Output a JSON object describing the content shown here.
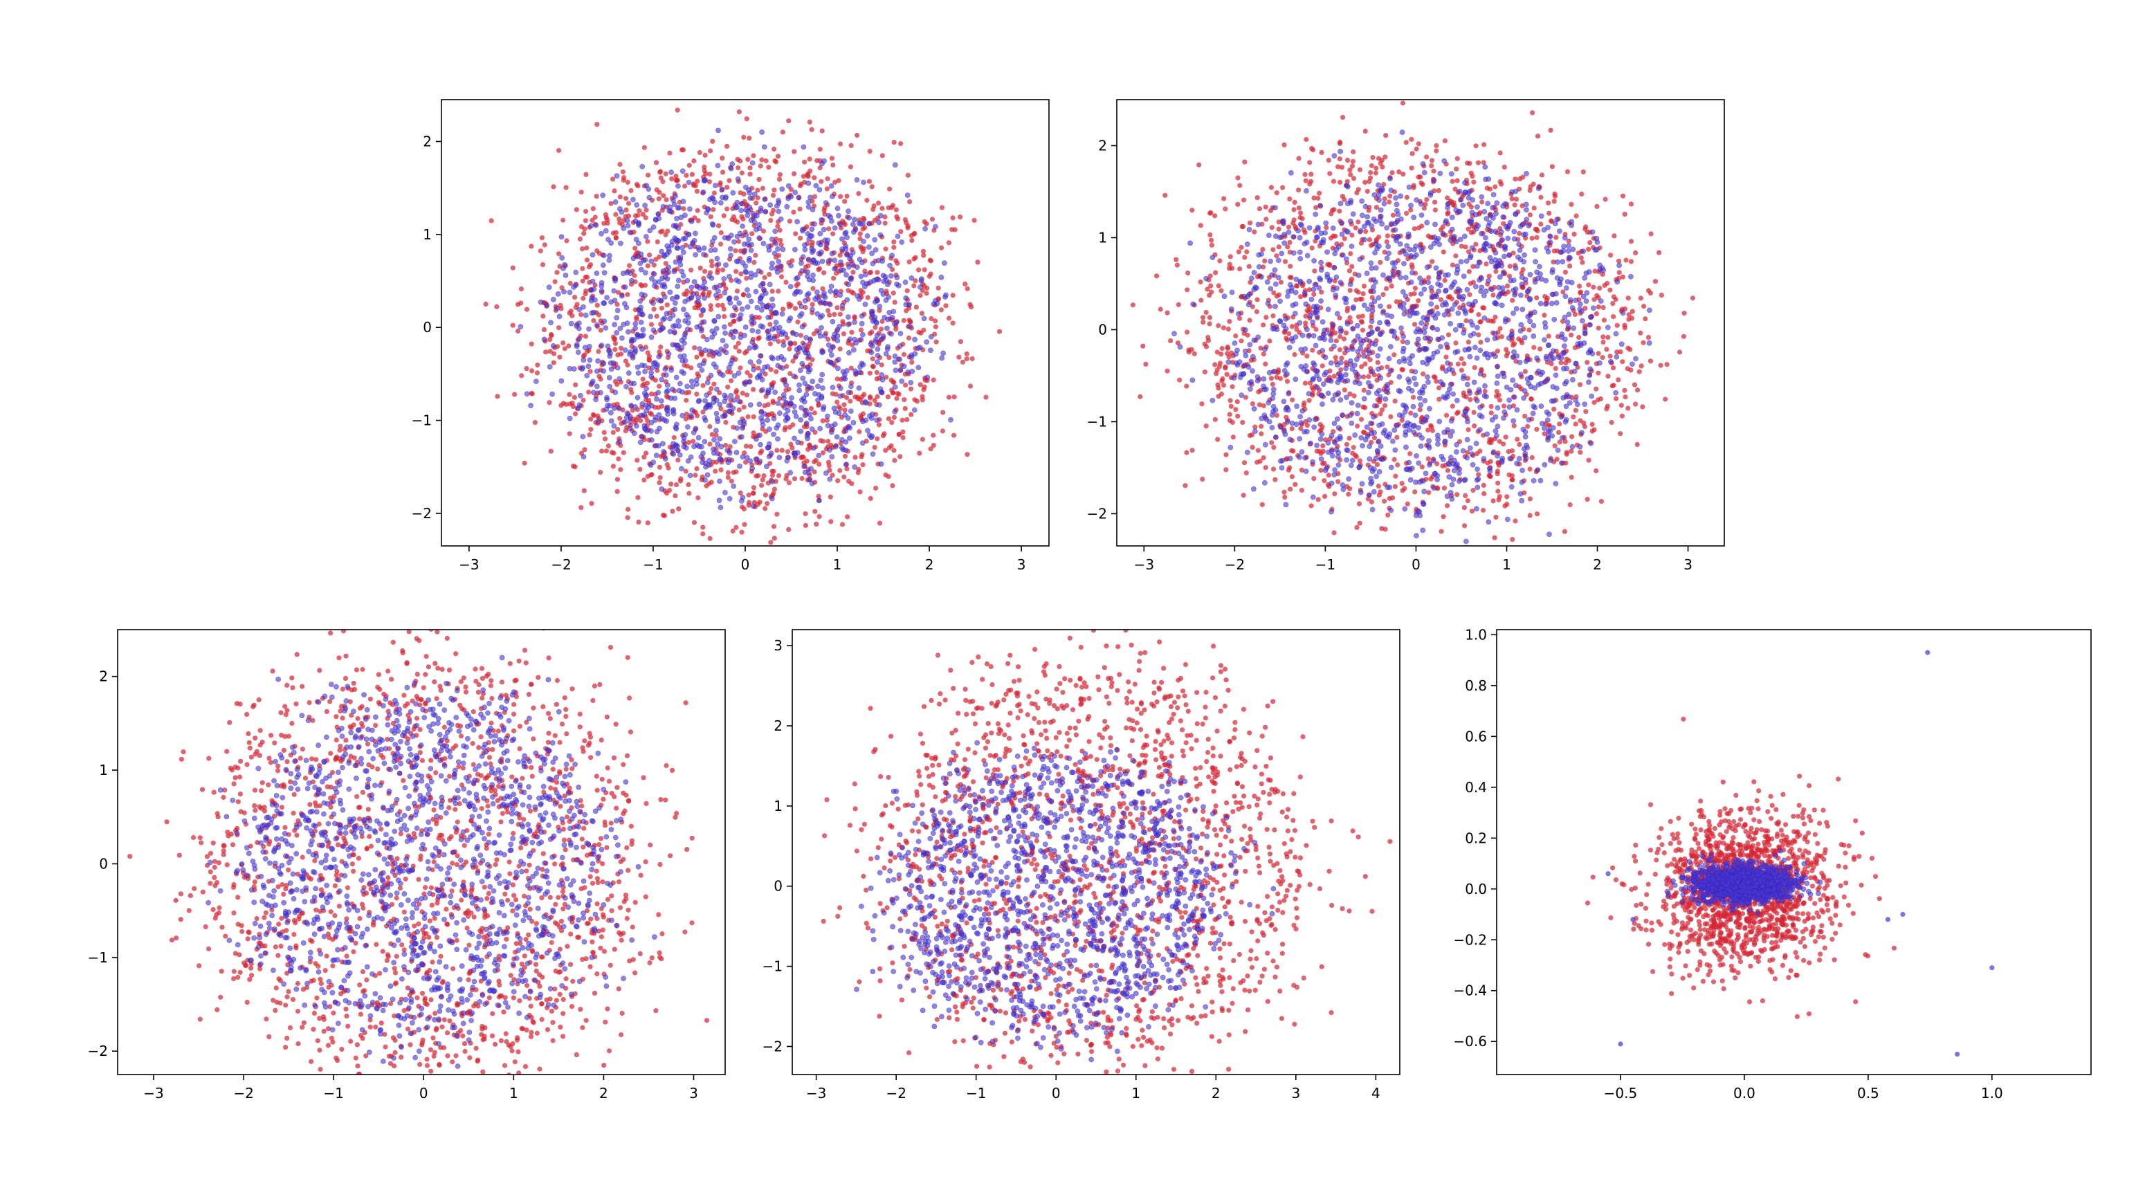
{
  "figure": {
    "layout": "two rows: 2 panels on top, 3 panels on bottom",
    "colors": {
      "series_a": "#d62734",
      "series_b": "#4a35d6",
      "axis": "#000000",
      "background": "#ffffff"
    }
  },
  "chart_data": [
    {
      "type": "scatter",
      "xlim": [
        -3.3,
        3.3
      ],
      "ylim": [
        -2.35,
        2.45
      ],
      "xticks": [
        -3,
        -2,
        -1,
        0,
        1,
        2,
        3
      ],
      "yticks": [
        -2,
        -1,
        0,
        1,
        2
      ],
      "xtick_labels": [
        "−3",
        "−2",
        "−1",
        "0",
        "1",
        "2",
        "3"
      ],
      "ytick_labels": [
        "−2",
        "−1",
        "0",
        "1",
        "2"
      ],
      "series": [
        {
          "color": "#d62734",
          "count": 1500,
          "center": [
            0.0,
            0.0
          ],
          "spread": [
            0.95,
            0.8
          ],
          "shape": "disc",
          "radius": 2.2
        },
        {
          "color": "#4a35d6",
          "count": 1300,
          "center": [
            0.0,
            0.0
          ],
          "spread": [
            0.85,
            0.7
          ],
          "shape": "disc",
          "radius": 1.85
        }
      ],
      "grid": false
    },
    {
      "type": "scatter",
      "xlim": [
        -3.3,
        3.4
      ],
      "ylim": [
        -2.35,
        2.5
      ],
      "xticks": [
        -3,
        -2,
        -1,
        0,
        1,
        2,
        3
      ],
      "yticks": [
        -2,
        -1,
        0,
        1,
        2
      ],
      "xtick_labels": [
        "−3",
        "−2",
        "−1",
        "0",
        "1",
        "2",
        "3"
      ],
      "ytick_labels": [
        "−2",
        "−1",
        "0",
        "1",
        "2"
      ],
      "series": [
        {
          "color": "#d62734",
          "count": 1500,
          "center": [
            0.0,
            0.0
          ],
          "spread": [
            1.0,
            0.8
          ],
          "shape": "disc",
          "radius": 2.4
        },
        {
          "color": "#4a35d6",
          "count": 1300,
          "center": [
            0.0,
            -0.1
          ],
          "spread": [
            0.9,
            0.75
          ],
          "shape": "disc",
          "radius": 2.0
        }
      ],
      "grid": false
    },
    {
      "type": "scatter",
      "xlim": [
        -3.4,
        3.35
      ],
      "ylim": [
        -2.25,
        2.5
      ],
      "xticks": [
        -3,
        -2,
        -1,
        0,
        1,
        2,
        3
      ],
      "yticks": [
        -2,
        -1,
        0,
        1,
        2
      ],
      "xtick_labels": [
        "−3",
        "−2",
        "−1",
        "0",
        "1",
        "2",
        "3"
      ],
      "ytick_labels": [
        "−2",
        "−1",
        "0",
        "1",
        "2"
      ],
      "series": [
        {
          "color": "#d62734",
          "count": 1500,
          "center": [
            0.0,
            0.0
          ],
          "spread": [
            1.05,
            0.95
          ],
          "shape": "disc",
          "radius": 2.4
        },
        {
          "color": "#4a35d6",
          "count": 1300,
          "center": [
            0.0,
            0.0
          ],
          "spread": [
            0.85,
            0.75
          ],
          "shape": "disc",
          "radius": 1.9
        }
      ],
      "grid": false
    },
    {
      "type": "scatter",
      "xlim": [
        -3.3,
        4.3
      ],
      "ylim": [
        -2.35,
        3.2
      ],
      "xticks": [
        -3,
        -2,
        -1,
        0,
        1,
        2,
        3,
        4
      ],
      "yticks": [
        -2,
        -1,
        0,
        1,
        2,
        3
      ],
      "xtick_labels": [
        "−3",
        "−2",
        "−1",
        "0",
        "1",
        "2",
        "3",
        "4"
      ],
      "ytick_labels": [
        "−2",
        "−1",
        "0",
        "1",
        "2",
        "3"
      ],
      "series": [
        {
          "color": "#d62734",
          "count": 1500,
          "center": [
            0.5,
            0.3
          ],
          "spread": [
            1.1,
            1.0
          ],
          "shape": "disc",
          "radius": 2.6
        },
        {
          "color": "#4a35d6",
          "count": 1300,
          "center": [
            0.0,
            -0.1
          ],
          "spread": [
            0.9,
            0.75
          ],
          "shape": "disc",
          "radius": 1.95
        }
      ],
      "grid": false
    },
    {
      "type": "scatter",
      "xlim": [
        -1.0,
        1.4
      ],
      "ylim": [
        -0.73,
        1.02
      ],
      "xticks": [
        -0.5,
        0.0,
        0.5,
        1.0
      ],
      "yticks": [
        -0.6,
        -0.4,
        -0.2,
        0.0,
        0.2,
        0.4,
        0.6,
        0.8,
        1.0
      ],
      "xtick_labels": [
        "−0.5",
        "0.0",
        "0.5",
        "1.0"
      ],
      "ytick_labels": [
        "−0.6",
        "−0.4",
        "−0.2",
        "0.0",
        "0.2",
        "0.4",
        "0.6",
        "0.8",
        "1.0"
      ],
      "series": [
        {
          "color": "#d62734",
          "count": 1400,
          "center": [
            0.0,
            0.0
          ],
          "spread": [
            0.18,
            0.15
          ],
          "shape": "gauss"
        },
        {
          "color": "#4a35d6",
          "count": 1300,
          "center": [
            0.0,
            0.02
          ],
          "spread": [
            0.1,
            0.035
          ],
          "shape": "gauss"
        }
      ],
      "outliers": [
        {
          "x": 0.74,
          "y": 0.93
        },
        {
          "x": 1.0,
          "y": -0.31
        },
        {
          "x": 0.86,
          "y": -0.65
        },
        {
          "x": -0.5,
          "y": -0.61
        },
        {
          "x": 0.58,
          "y": -0.12
        },
        {
          "x": 0.64,
          "y": -0.1
        },
        {
          "x": -0.45,
          "y": -0.12
        },
        {
          "x": -0.55,
          "y": 0.06
        }
      ],
      "grid": false
    }
  ]
}
